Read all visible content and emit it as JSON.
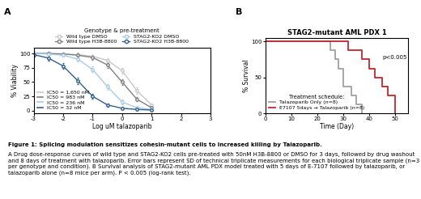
{
  "panel_labels": [
    "A",
    "B"
  ],
  "chart_data": [
    {
      "type": "line",
      "xlabel": "Log uM talazoparib",
      "ylabel": "% Viability",
      "legend_title": "Genotype & pre-treatment",
      "legend": "lower center",
      "x": [
        -3,
        -2.5,
        -2,
        -1.5,
        -1,
        -0.5,
        0,
        0.5,
        1
      ],
      "xlim": [
        -3,
        3
      ],
      "xticks": [
        -3,
        -2,
        -1,
        0,
        1,
        2,
        3
      ],
      "ylim": [
        -5,
        110
      ],
      "yticks": [
        0,
        25,
        50,
        75,
        100
      ],
      "marker": "o",
      "series": [
        {
          "name": "Wild type DMSO",
          "color": "#c8c8c8",
          "ic50_label": "IC50 = 1,650 nM",
          "values": [
            100,
            100,
            99,
            98,
            95,
            88,
            70,
            35,
            10
          ],
          "errors": [
            3,
            3,
            3,
            3,
            3,
            4,
            5,
            5,
            3
          ]
        },
        {
          "name": "Wild type H3B-8800",
          "color": "#808080",
          "ic50_label": "IC50 = 983 nM",
          "values": [
            100,
            100,
            99,
            97,
            93,
            80,
            50,
            20,
            5
          ],
          "errors": [
            3,
            3,
            3,
            3,
            4,
            5,
            5,
            4,
            2
          ]
        },
        {
          "name": "STAG2-KO2 DMSO",
          "color": "#a9cbe8",
          "ic50_label": "IC50 = 236 nM",
          "values": [
            100,
            99,
            97,
            90,
            72,
            42,
            15,
            5,
            2
          ],
          "errors": [
            3,
            3,
            3,
            4,
            5,
            5,
            4,
            2,
            1
          ]
        },
        {
          "name": "STAG2-KO2 H3B-8800",
          "color": "#2f5f8a",
          "ic50_label": "IC50 = 32 nM",
          "values": [
            98,
            92,
            78,
            52,
            25,
            10,
            4,
            2,
            1
          ],
          "errors": [
            3,
            4,
            5,
            5,
            4,
            3,
            2,
            1,
            1
          ]
        }
      ]
    },
    {
      "type": "step",
      "title": "STAG2-mutant AML PDX 1",
      "xlabel": "Time (Day)",
      "ylabel": "% Survival",
      "legend_title": "Treatment schedule:",
      "legend": "lower left",
      "xlim": [
        0,
        55
      ],
      "xticks": [
        0,
        10,
        20,
        30,
        40,
        50
      ],
      "ylim": [
        0,
        105
      ],
      "yticks": [
        0,
        50,
        100
      ],
      "annotation": {
        "text": "p<0.005",
        "x": 45,
        "y": 78
      },
      "series": [
        {
          "name": "Talazoparib Only (n=8)",
          "color": "#a0a0a0",
          "x": [
            0,
            25,
            27,
            28,
            30,
            33,
            35,
            37
          ],
          "values": [
            100,
            87.5,
            75,
            62.5,
            37.5,
            25,
            12.5,
            0
          ]
        },
        {
          "name": "E7107 5days → Talazoparib (n=8)",
          "color": "#c0262d",
          "x": [
            0,
            32,
            37,
            40,
            42,
            45,
            47,
            50
          ],
          "values": [
            100,
            87.5,
            75,
            62.5,
            50,
            37.5,
            25,
            0
          ]
        }
      ]
    }
  ],
  "caption_title": "Figure 1: Splicing modulation sensitizes cohesin-mutant cells to increased killing by Talazoparib.",
  "caption": "A Drug dose-response curves of wild type and STAG2-KO2 cells pre-treated with 50nM H3B-8800 or DMSO for 3 days, followed by drug washout and 8 days of treatment with talazoparib. Error bars represent SD of technical triplicate measurements for each biological triplicate sample (n=3 per genotype and condition). B Survival analysis of STAG2-mutant AML PDX model treated with 5 days of E-7107 followed by talazoparib, or talazoparib alone (n=8 mice per arm). P < 0.005 (log-rank test)."
}
